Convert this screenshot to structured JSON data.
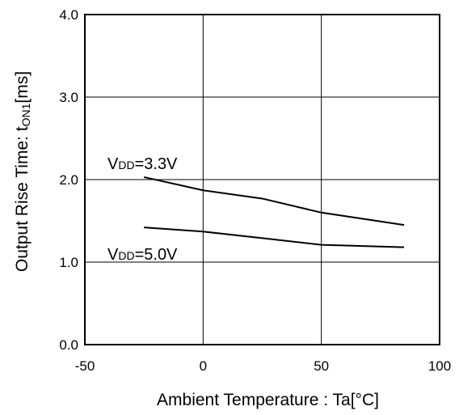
{
  "chart_data": {
    "type": "line",
    "xlabel": "Ambient Temperature : Ta[°C]",
    "ylabel_parts": {
      "main": "Output Rise Time: t",
      "sub": "ON1",
      "unit": "[ms]"
    },
    "xlim": [
      -50,
      100
    ],
    "ylim": [
      0.0,
      4.0
    ],
    "xticks": [
      -50,
      0,
      50,
      100
    ],
    "xtick_labels": [
      "-50",
      "0",
      "50",
      "100"
    ],
    "yticks": [
      0,
      1,
      2,
      3,
      4
    ],
    "ytick_labels": [
      "0.0",
      "1.0",
      "2.0",
      "3.0",
      "4.0"
    ],
    "grid": true,
    "series": [
      {
        "label_parts": {
          "v": "V",
          "dd": "DD",
          "eq": "=3.3V"
        },
        "x": [
          -25,
          0,
          25,
          50,
          85
        ],
        "y": [
          2.03,
          1.87,
          1.77,
          1.6,
          1.45
        ]
      },
      {
        "label_parts": {
          "v": "V",
          "dd": "DD",
          "eq": "=5.0V"
        },
        "x": [
          -25,
          0,
          25,
          50,
          85
        ],
        "y": [
          1.42,
          1.37,
          1.29,
          1.21,
          1.18
        ]
      }
    ]
  }
}
